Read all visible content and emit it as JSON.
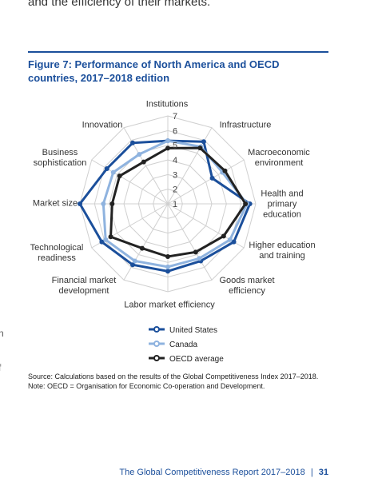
{
  "page": {
    "intro_fragment": "and the efficiency of their markets.",
    "margin_fragments": [
      "n",
      "f"
    ],
    "source": "Source: Calculations based on the results of the Global Competitiveness Index 2017–2018.",
    "note": "Note: OECD = Organisation for Economic Co-operation and Development.",
    "footer": "The Global Competitiveness Report 2017–2018",
    "page_number": "31"
  },
  "chart_data": {
    "type": "radar",
    "title": "Figure 7: Performance of North America and OECD countries, 2017–2018 edition",
    "categories": [
      "Institutions",
      "Infrastructure",
      "Macroeconomic environment",
      "Health and primary education",
      "Higher education and training",
      "Goods market efficiency",
      "Labor market efficiency",
      "Financial market development",
      "Technological readiness",
      "Market size",
      "Business sophistication",
      "Innovation"
    ],
    "rlim": [
      1,
      7
    ],
    "rticks": [
      1,
      2,
      3,
      4,
      5,
      6,
      7
    ],
    "grid": true,
    "series": [
      {
        "name": "United States",
        "color": "#1b4f9b",
        "values": [
          5.3,
          5.9,
          4.5,
          6.6,
          6.2,
          5.5,
          5.6,
          5.8,
          6.2,
          7.0,
          5.8,
          5.8
        ]
      },
      {
        "name": "Canada",
        "color": "#8fb3df",
        "values": [
          5.3,
          5.5,
          5.3,
          6.4,
          5.9,
          5.3,
          5.3,
          5.5,
          5.9,
          5.4,
          5.3,
          4.9
        ]
      },
      {
        "name": "OECD average",
        "color": "#222222",
        "values": [
          4.8,
          5.4,
          5.5,
          6.3,
          5.4,
          4.8,
          4.6,
          4.5,
          5.5,
          4.8,
          4.8,
          4.3
        ]
      }
    ]
  }
}
